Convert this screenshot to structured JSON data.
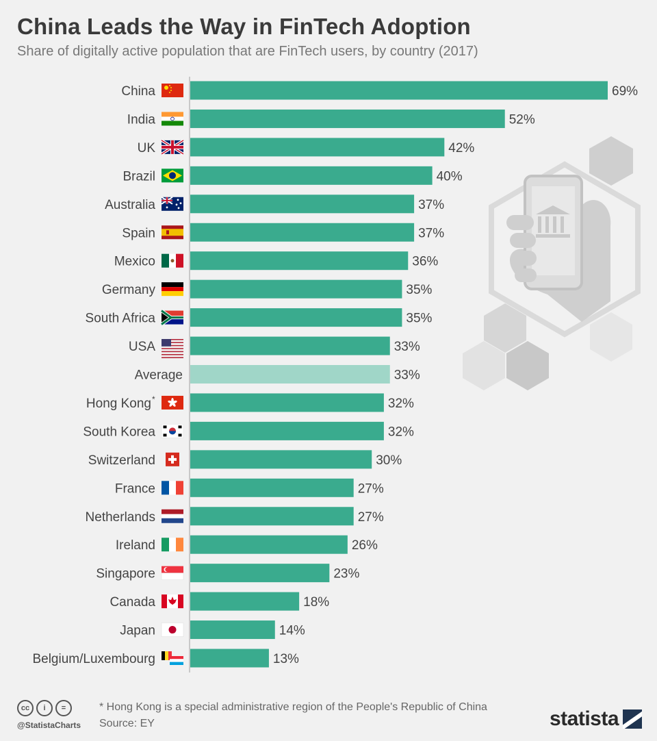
{
  "header": {
    "title": "China Leads the Way in FinTech Adoption",
    "subtitle": "Share of digitally active population that are FinTech users, by country (2017)"
  },
  "chart_data": {
    "type": "bar",
    "orientation": "horizontal",
    "categories": [
      "China",
      "India",
      "UK",
      "Brazil",
      "Australia",
      "Spain",
      "Mexico",
      "Germany",
      "South Africa",
      "USA",
      "Average",
      "Hong Kong",
      "South Korea",
      "Switzerland",
      "France",
      "Netherlands",
      "Ireland",
      "Singapore",
      "Canada",
      "Japan",
      "Belgium/Luxembourg"
    ],
    "values": [
      69,
      52,
      42,
      40,
      37,
      37,
      36,
      35,
      35,
      33,
      33,
      32,
      32,
      30,
      27,
      27,
      26,
      23,
      18,
      14,
      13
    ],
    "value_labels": [
      "69%",
      "52%",
      "42%",
      "40%",
      "37%",
      "37%",
      "36%",
      "35%",
      "35%",
      "33%",
      "33%",
      "32%",
      "32%",
      "30%",
      "27%",
      "27%",
      "26%",
      "23%",
      "18%",
      "14%",
      "13%"
    ],
    "highlight_category": "Average",
    "category_marks": {
      "Hong Kong": "*"
    },
    "colors": {
      "bar": "#3aab8e",
      "highlight": "#a0d6c8"
    },
    "xlim": [
      0,
      69
    ],
    "grid": false
  },
  "flags": [
    "china-flag",
    "india-flag",
    "uk-flag",
    "brazil-flag",
    "australia-flag",
    "spain-flag",
    "mexico-flag",
    "germany-flag",
    "south-africa-flag",
    "usa-flag",
    "",
    "hong-kong-flag",
    "south-korea-flag",
    "switzerland-flag",
    "france-flag",
    "netherlands-flag",
    "ireland-flag",
    "singapore-flag",
    "canada-flag",
    "japan-flag",
    "belgium-luxembourg-flag"
  ],
  "footer": {
    "note": "* Hong Kong is a special administrative region of the People's Republic of China",
    "source": "Source: EY",
    "handle": "@StatistaCharts",
    "brand": "statista"
  }
}
